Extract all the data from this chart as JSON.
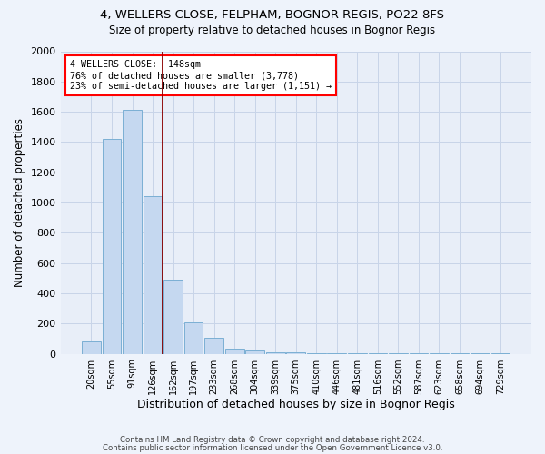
{
  "title": "4, WELLERS CLOSE, FELPHAM, BOGNOR REGIS, PO22 8FS",
  "subtitle": "Size of property relative to detached houses in Bognor Regis",
  "xlabel": "Distribution of detached houses by size in Bognor Regis",
  "ylabel": "Number of detached properties",
  "bin_labels": [
    "20sqm",
    "55sqm",
    "91sqm",
    "126sqm",
    "162sqm",
    "197sqm",
    "233sqm",
    "268sqm",
    "304sqm",
    "339sqm",
    "375sqm",
    "410sqm",
    "446sqm",
    "481sqm",
    "516sqm",
    "552sqm",
    "587sqm",
    "623sqm",
    "658sqm",
    "694sqm",
    "729sqm"
  ],
  "bin_values": [
    80,
    1420,
    1610,
    1045,
    490,
    205,
    105,
    35,
    20,
    10,
    10,
    5,
    5,
    5,
    5,
    5,
    5,
    5,
    5,
    5,
    5
  ],
  "bar_color": "#c5d8f0",
  "bar_edge_color": "#7bafd4",
  "vline_x": 3.5,
  "vline_color": "#8b0000",
  "annotation_line1": "4 WELLERS CLOSE:  148sqm",
  "annotation_line2": "76% of detached houses are smaller (3,778)",
  "annotation_line3": "23% of semi-detached houses are larger (1,151) →",
  "annotation_box_color": "white",
  "annotation_box_edge": "red",
  "footer_line1": "Contains HM Land Registry data © Crown copyright and database right 2024.",
  "footer_line2": "Contains public sector information licensed under the Open Government Licence v3.0.",
  "background_color": "#eef3fb",
  "plot_background": "#e8eef8",
  "ylim": [
    0,
    2000
  ],
  "yticks": [
    0,
    200,
    400,
    600,
    800,
    1000,
    1200,
    1400,
    1600,
    1800,
    2000
  ],
  "title_fontsize": 9.5,
  "subtitle_fontsize": 8.5
}
